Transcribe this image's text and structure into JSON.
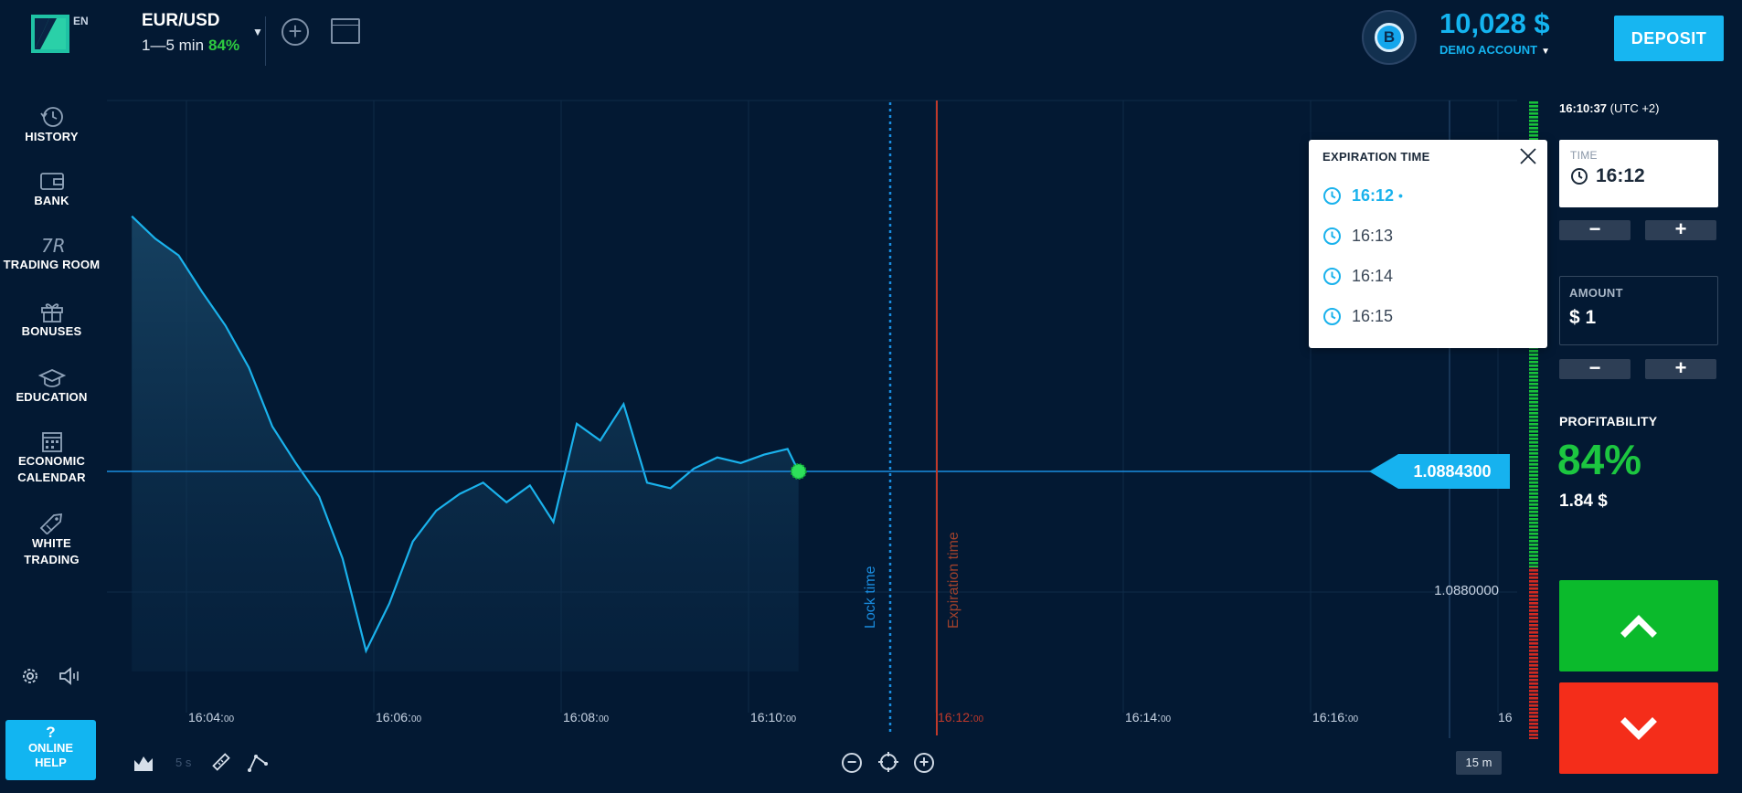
{
  "header": {
    "language": "EN",
    "asset_name": "EUR/USD",
    "asset_period": "1—5 min",
    "asset_payout": "84%",
    "balance": "10,028 $",
    "account_type": "DEMO ACCOUNT",
    "account_badge": "B",
    "deposit_label": "DEPOSIT"
  },
  "sidebar": {
    "items": [
      {
        "label": "HISTORY",
        "icon": "history-icon"
      },
      {
        "label": "BANK",
        "icon": "wallet-icon"
      },
      {
        "label": "TRADING ROOM",
        "icon": "trading-room-icon"
      },
      {
        "label": "BONUSES",
        "icon": "gift-icon"
      },
      {
        "label": "EDUCATION",
        "icon": "graduation-cap-icon"
      },
      {
        "label": "ECONOMIC",
        "label2": "CALENDAR",
        "icon": "calendar-icon"
      },
      {
        "label": "WHITE",
        "label2": "TRADING",
        "icon": "tag-icon"
      }
    ],
    "help_q": "?",
    "help_line1": "ONLINE",
    "help_line2": "HELP"
  },
  "chart": {
    "current_price": "1.0884300",
    "level_label": "1.0880000",
    "lock_label": "Lock time",
    "expiration_label": "Expiration time",
    "x_ticks": [
      {
        "main": "16:04:",
        "sec": "00"
      },
      {
        "main": "16:06:",
        "sec": "00"
      },
      {
        "main": "16:08:",
        "sec": "00"
      },
      {
        "main": "16:10:",
        "sec": "00"
      },
      {
        "main": "16:12:",
        "sec": "00"
      },
      {
        "main": "16:14:",
        "sec": "00"
      },
      {
        "main": "16:16:",
        "sec": "00"
      },
      {
        "main": "16",
        "sec": ""
      }
    ],
    "timeframe_small": "5 s",
    "timeframe": "15 m"
  },
  "chart_data": {
    "type": "area",
    "x": [
      "16:03:25",
      "16:03:40",
      "16:03:55",
      "16:04:10",
      "16:04:25",
      "16:04:40",
      "16:04:55",
      "16:05:10",
      "16:05:25",
      "16:05:40",
      "16:05:55",
      "16:06:10",
      "16:06:25",
      "16:06:40",
      "16:06:55",
      "16:07:10",
      "16:07:25",
      "16:07:40",
      "16:07:55",
      "16:08:10",
      "16:08:25",
      "16:08:40",
      "16:08:55",
      "16:09:10",
      "16:09:25",
      "16:09:40",
      "16:09:55",
      "16:10:10",
      "16:10:25",
      "16:10:32"
    ],
    "series": [
      {
        "values": [
          1.08934,
          1.08926,
          1.0892,
          1.08907,
          1.08895,
          1.0888,
          1.08859,
          1.08846,
          1.08834,
          1.08812,
          1.08779,
          1.08796,
          1.08818,
          1.08829,
          1.08835,
          1.08839,
          1.08832,
          1.08838,
          1.08825,
          1.0886,
          1.08854,
          1.08867,
          1.08839,
          1.08837,
          1.08844,
          1.08848,
          1.08846,
          1.08849,
          1.08851,
          1.08843
        ]
      }
    ],
    "current_price": 1.08843,
    "ylabel_ticks": [
      1.088
    ],
    "xlabel": "",
    "ylabel": ""
  },
  "right_panel": {
    "server_time": "16:10:37",
    "timezone": "(UTC +2)",
    "time_label": "TIME",
    "time_value": "16:12",
    "amount_label": "AMOUNT",
    "amount_value": "$ 1",
    "profitability_label": "PROFITABILITY",
    "profitability_pct": "84%",
    "profit_amount": "1.84 $",
    "minus": "−",
    "plus": "+"
  },
  "expiration_popup": {
    "title": "EXPIRATION TIME",
    "options": [
      "16:12",
      "16:13",
      "16:14",
      "16:15"
    ],
    "selected_marker": "•"
  },
  "colors": {
    "background": "#031933",
    "accent": "#14b4f0",
    "up": "#0bba2c",
    "down": "#f42d1a",
    "lock_line": "#1a8de0",
    "expiration_line": "#c0392b"
  }
}
